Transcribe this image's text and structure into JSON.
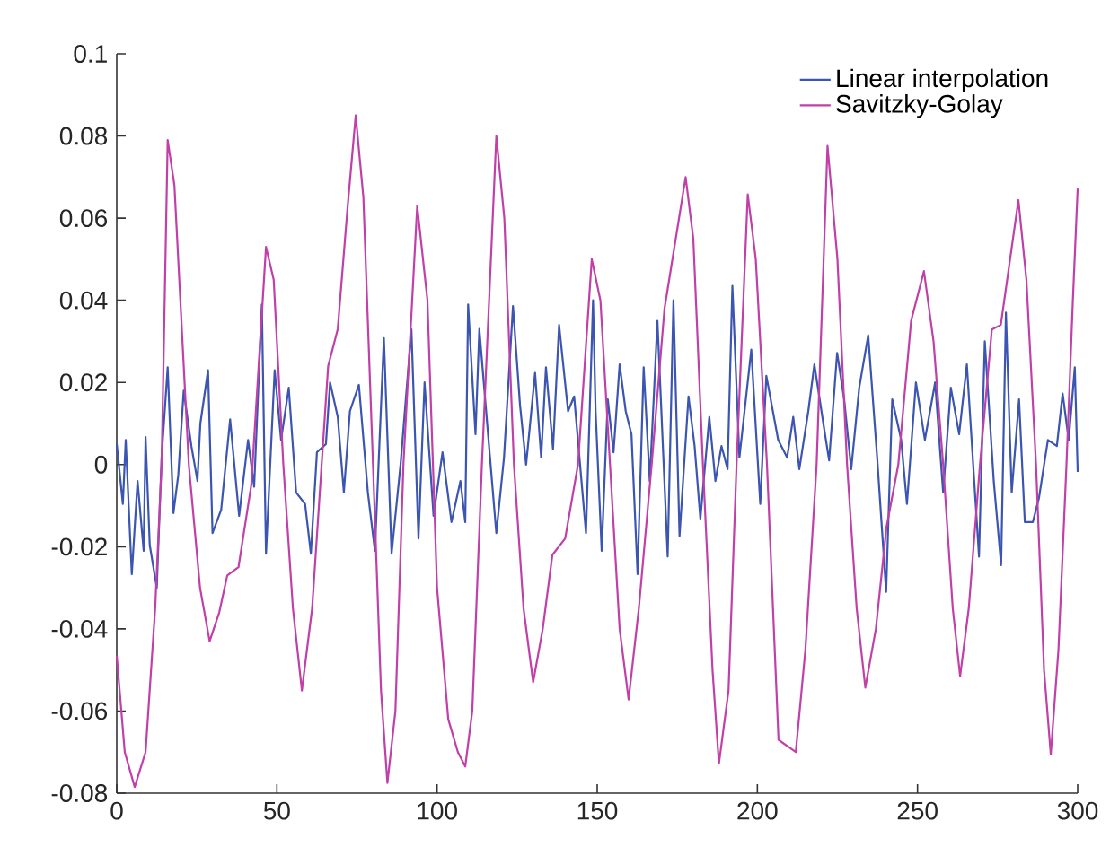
{
  "chart_data": {
    "type": "line",
    "xlim": [
      0,
      300
    ],
    "ylim": [
      -0.08,
      0.1
    ],
    "xticks": [
      0,
      50,
      100,
      150,
      200,
      250,
      300
    ],
    "yticks": [
      -0.08,
      -0.06,
      -0.04,
      -0.02,
      0,
      0.02,
      0.04,
      0.06,
      0.08,
      0.1
    ],
    "legend": "top right",
    "series": [
      {
        "name": "Linear interpolation",
        "color": "#3b55b0",
        "x": [
          0,
          1.9,
          2.8,
          4.7,
          6.5,
          8.4,
          9,
          10.3,
          12.5,
          14,
          15.9,
          17.7,
          19.2,
          20.9,
          23.3,
          25.2,
          26.1,
          28.5,
          29.9,
          32.6,
          35.4,
          38.2,
          41,
          42.9,
          45.3,
          46.6,
          49.3,
          51.3,
          53.7,
          56,
          58.8,
          60.6,
          62.5,
          65.3,
          66.6,
          69,
          70.9,
          72.8,
          75.6,
          78.4,
          80.6,
          83.4,
          85.8,
          88.6,
          92,
          94.2,
          96.1,
          98.9,
          101.7,
          104.5,
          107.3,
          108.8,
          109.7,
          112,
          113.2,
          115.7,
          118.5,
          120.9,
          123.7,
          125.9,
          127.8,
          130.6,
          132.5,
          134,
          136.2,
          138.1,
          140.9,
          142.8,
          146.5,
          148.7,
          149.5,
          151.4,
          153.3,
          155.1,
          157,
          158.9,
          160.7,
          162.6,
          164.5,
          166.4,
          168.8,
          172,
          173.8,
          175.7,
          178.5,
          180.4,
          182.2,
          185,
          186.9,
          188.8,
          190.7,
          192.2,
          194.4,
          198.1,
          200.9,
          202.8,
          206.5,
          209.3,
          211.2,
          213.1,
          215.9,
          217.8,
          220.6,
          222.4,
          224.9,
          227.1,
          229.3,
          231.8,
          234.6,
          237.4,
          240.2,
          242.1,
          244.9,
          246.7,
          249.5,
          252.3,
          255.5,
          258,
          260.4,
          263,
          265.4,
          269.2,
          271,
          273.8,
          276.1,
          277.6,
          279.4,
          281.7,
          283.5,
          286,
          287.9,
          290.7,
          293.5,
          295.3,
          297.2,
          299.1,
          300
        ],
        "values": [
          0.005,
          -0.0096,
          0.006,
          -0.0267,
          -0.004,
          -0.021,
          0.0067,
          -0.0196,
          -0.03,
          0.0017,
          0.0237,
          -0.0118,
          -0.0026,
          0.018,
          0.0045,
          -0.004,
          0.01,
          0.023,
          -0.0167,
          -0.011,
          0.011,
          -0.0125,
          0.006,
          -0.0054,
          0.039,
          -0.0217,
          0.023,
          0.006,
          0.0187,
          -0.0068,
          -0.0096,
          -0.0217,
          0.003,
          0.005,
          0.02,
          0.0116,
          -0.0068,
          0.013,
          0.0194,
          -0.0068,
          -0.021,
          0.0308,
          -0.0217,
          0,
          0.0329,
          -0.018,
          0.02,
          -0.0125,
          0.003,
          -0.014,
          -0.004,
          -0.014,
          0.039,
          0.0074,
          0.033,
          0.0095,
          -0.0167,
          0.0017,
          0.0386,
          0.0145,
          0,
          0.0223,
          0.0017,
          0.0237,
          0.0038,
          0.034,
          0.013,
          0.0166,
          -0.0167,
          0.04,
          0.013,
          -0.021,
          0.0159,
          0.003,
          0.0244,
          0.013,
          0.0074,
          -0.0267,
          0.0237,
          -0.004,
          0.035,
          -0.0224,
          0.04,
          -0.0174,
          0.0166,
          0.0045,
          -0.0132,
          0.0116,
          -0.004,
          0.0045,
          -0.0011,
          0.0435,
          0.0017,
          0.028,
          -0.0096,
          0.0216,
          0.006,
          0.0017,
          0.0116,
          -0.0011,
          0.013,
          0.0244,
          0.01,
          0.001,
          0.0272,
          0.0159,
          -0.0011,
          0.0187,
          0.0315,
          0.0017,
          -0.031,
          0.0159,
          0.006,
          -0.0096,
          0.02,
          0.006,
          0.02,
          -0.0068,
          0.0187,
          0.0074,
          0.0244,
          -0.0224,
          0.03,
          -0.004,
          -0.0245,
          0.037,
          -0.0068,
          0.0159,
          -0.014,
          -0.014,
          -0.0082,
          0.006,
          0.0045,
          0.0173,
          0.006,
          0.0237,
          -0.0018
        ]
      },
      {
        "name": "Savitzky-Golay",
        "color": "#c040a8",
        "x": [
          0,
          2.5,
          5.6,
          9,
          12,
          14,
          15.9,
          18,
          22.5,
          26,
          29,
          32,
          34.5,
          38,
          42,
          46.6,
          49,
          52,
          55,
          57.8,
          61,
          66,
          69,
          72,
          74.6,
          77,
          80,
          82.5,
          84.5,
          87,
          89.5,
          93.8,
          97,
          100,
          103.5,
          106.5,
          108.8,
          111,
          114,
          118.5,
          121,
          124,
          127,
          130,
          133,
          136,
          140,
          144,
          148.3,
          151,
          154,
          157,
          159.8,
          163,
          167,
          171,
          177.6,
          180,
          183,
          186,
          188,
          191,
          193.5,
          197,
          199.5,
          203,
          206.6,
          209.3,
          212,
          215,
          218.5,
          221.9,
          225,
          228,
          231,
          233.7,
          237,
          240.3,
          244,
          248,
          252,
          255,
          258,
          261,
          263.3,
          266,
          269.5,
          273.2,
          276,
          281.5,
          284,
          287,
          289.5,
          291.6,
          294,
          296.5,
          298.5,
          300
        ],
        "values": [
          -0.0465,
          -0.07,
          -0.0785,
          -0.07,
          -0.035,
          0,
          0.079,
          0.068,
          0,
          -0.03,
          -0.043,
          -0.036,
          -0.027,
          -0.025,
          -0.005,
          0.053,
          0.045,
          0,
          -0.035,
          -0.055,
          -0.035,
          0.024,
          0.033,
          0.062,
          0.085,
          0.065,
          0,
          -0.055,
          -0.0775,
          -0.06,
          0,
          0.063,
          0.04,
          -0.03,
          -0.062,
          -0.07,
          -0.0735,
          -0.06,
          0,
          0.08,
          0.06,
          0,
          -0.035,
          -0.053,
          -0.04,
          -0.022,
          -0.018,
          0,
          0.05,
          0.04,
          0,
          -0.04,
          -0.0572,
          -0.035,
          0,
          0.0379,
          0.07,
          0.055,
          0,
          -0.05,
          -0.0728,
          -0.055,
          0,
          0.0658,
          0.05,
          0,
          -0.067,
          -0.0685,
          -0.07,
          -0.045,
          0,
          0.0776,
          0.05,
          0,
          -0.035,
          -0.0543,
          -0.04,
          -0.0153,
          0,
          0.035,
          0.0471,
          0.03,
          0,
          -0.035,
          -0.0515,
          -0.035,
          0,
          0.0329,
          0.034,
          0.0644,
          0.045,
          0,
          -0.05,
          -0.0706,
          -0.045,
          0,
          0.04,
          0.0672
        ]
      }
    ]
  }
}
